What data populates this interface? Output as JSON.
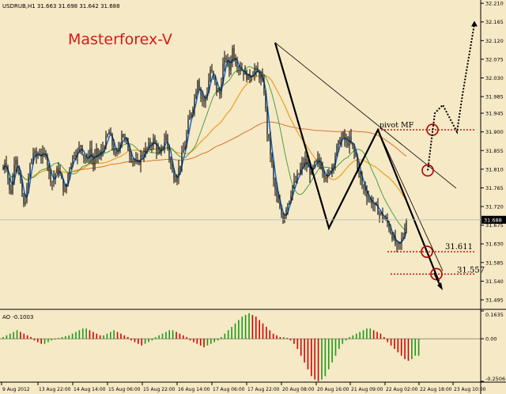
{
  "chart_data": [
    {
      "type": "candlestick",
      "symbol_header": "USDRUB,H1  31.663 31.698 31.642 31.688",
      "watermark": "Masterforex-V",
      "ylim": [
        31.474,
        32.195
      ],
      "y_ticks": [
        "32.210",
        "32.165",
        "32.120",
        "32.075",
        "32.030",
        "31.985",
        "31.945",
        "31.900",
        "31.855",
        "31.810",
        "31.765",
        "31.720",
        "31.675",
        "31.630",
        "31.585",
        "31.540",
        "31.495"
      ],
      "y_tick_values": [
        32.21,
        32.165,
        32.12,
        32.075,
        32.03,
        31.985,
        31.945,
        31.9,
        31.855,
        31.81,
        31.765,
        31.72,
        31.675,
        31.63,
        31.585,
        31.54,
        31.495
      ],
      "current_price": "31.688",
      "current_price_value": 31.688,
      "x_labels": [
        "9 Aug 2012",
        "13 Aug 22:00",
        "14 Aug 14:00",
        "15 Aug 06:00",
        "15 Aug 22:00",
        "16 Aug 14:00",
        "17 Aug 06:00",
        "17 Aug 22:00",
        "20 Aug 08:00",
        "20 Aug 16:00",
        "21 Aug 09:00",
        "22 Aug 02:00",
        "22 Aug 18:00",
        "23 Aug 10:00"
      ],
      "price_path_x": [
        0,
        3,
        6,
        9,
        12,
        15,
        18,
        22,
        26,
        30,
        34,
        38,
        42,
        46,
        50,
        54,
        58,
        62,
        66,
        70,
        74,
        78,
        82,
        86,
        90,
        94,
        98,
        102,
        106,
        110,
        114,
        118,
        122,
        126,
        130,
        134,
        138,
        142,
        146,
        150,
        154,
        158,
        162,
        166,
        170,
        174,
        178,
        182,
        186,
        190,
        194,
        198,
        202,
        206,
        210,
        214,
        218,
        222,
        226,
        230,
        234,
        238,
        242,
        246,
        250,
        254,
        258,
        262,
        266,
        270,
        274,
        278,
        282,
        286,
        290,
        294,
        298,
        302,
        306,
        310,
        314,
        318,
        322,
        326,
        330,
        334,
        338,
        342,
        346,
        350,
        354,
        358,
        362,
        366,
        370,
        374,
        378,
        382,
        386,
        390,
        394,
        398,
        402,
        406,
        410,
        414,
        418,
        422,
        426,
        430,
        434,
        438,
        442,
        446,
        450,
        454,
        458,
        462,
        466,
        470,
        474,
        478,
        482,
        486,
        490,
        494,
        498,
        502,
        506,
        510,
        514,
        518,
        522,
        526,
        530
      ],
      "price_path_y": [
        31.81,
        31.84,
        31.79,
        31.74,
        31.79,
        31.85,
        31.82,
        31.77,
        31.72,
        31.76,
        31.82,
        31.85,
        31.84,
        31.85,
        31.84,
        31.85,
        31.8,
        31.78,
        31.8,
        31.81,
        31.78,
        31.75,
        31.8,
        31.83,
        31.85,
        31.85,
        31.87,
        31.84,
        31.83,
        31.86,
        31.82,
        31.85,
        31.84,
        31.86,
        31.88,
        31.9,
        31.87,
        31.84,
        31.86,
        31.9,
        31.88,
        31.86,
        31.84,
        31.83,
        31.82,
        31.84,
        31.85,
        31.86,
        31.87,
        31.88,
        31.86,
        31.84,
        31.87,
        31.89,
        31.84,
        31.8,
        31.79,
        31.81,
        31.84,
        31.87,
        31.92,
        31.95,
        31.98,
        32.03,
        31.99,
        31.97,
        32.0,
        32.05,
        32.03,
        32.0,
        31.99,
        32.06,
        32.08,
        32.05,
        32.1,
        32.07,
        32.06,
        32.05,
        32.04,
        32.03,
        32.04,
        32.05,
        32.04,
        32.03,
        32.0,
        31.9,
        31.85,
        31.78,
        31.74,
        31.71,
        31.69,
        31.72,
        31.74,
        31.77,
        31.78,
        31.8,
        31.82,
        31.83,
        31.81,
        31.8,
        31.82,
        31.83,
        31.82,
        31.8,
        31.79,
        31.81,
        31.83,
        31.86,
        31.88,
        31.89,
        31.87,
        31.88,
        31.86,
        31.84,
        31.8,
        31.77,
        31.76,
        31.74,
        31.73,
        31.72,
        31.71,
        31.7,
        31.69,
        31.68,
        31.66,
        31.64,
        31.62,
        31.63,
        31.65,
        31.69
      ],
      "zigzag": [
        [
          32.115,
          0.735
        ],
        [
          31.668,
          0.9
        ],
        [
          31.905,
          0.6
        ],
        [
          31.54,
          0.2
        ]
      ],
      "annotations": [
        {
          "text": "pivot MF",
          "value": 31.905
        },
        {
          "text": "31.611",
          "value": 31.611
        },
        {
          "text": "31.557",
          "value": 31.557
        }
      ],
      "forecast_levels": [
        31.905,
        31.807,
        31.611,
        31.557
      ]
    },
    {
      "type": "bar",
      "title": "AO -0.1003",
      "y_ticks": [
        "0.1635",
        "0.00",
        "-0.2506"
      ],
      "ylim": [
        -0.2506,
        0.1635
      ],
      "values": [
        0.01,
        0.02,
        0.03,
        0.04,
        0.05,
        0.04,
        0.03,
        0.02,
        0.01,
        -0.01,
        -0.02,
        -0.03,
        -0.03,
        -0.02,
        -0.01,
        -0.005,
        0.005,
        0.01,
        0.015,
        0.02,
        0.03,
        0.04,
        0.05,
        0.06,
        0.06,
        0.05,
        0.04,
        0.03,
        0.02,
        0.02,
        0.03,
        0.04,
        0.05,
        0.04,
        0.03,
        0.02,
        0.01,
        -0.01,
        -0.02,
        -0.03,
        -0.04,
        -0.03,
        -0.02,
        -0.01,
        0.01,
        0.02,
        0.03,
        0.04,
        0.05,
        0.05,
        0.04,
        0.03,
        0.02,
        0.01,
        -0.01,
        -0.02,
        -0.03,
        -0.04,
        -0.05,
        -0.04,
        -0.03,
        -0.02,
        -0.01,
        0.01,
        0.03,
        0.05,
        0.07,
        0.09,
        0.11,
        0.13,
        0.14,
        0.15,
        0.14,
        0.13,
        0.11,
        0.09,
        0.07,
        0.05,
        0.03,
        0.02,
        0.01,
        0.01,
        0.005,
        -0.01,
        -0.03,
        -0.06,
        -0.1,
        -0.14,
        -0.18,
        -0.22,
        -0.24,
        -0.25,
        -0.24,
        -0.22,
        -0.18,
        -0.14,
        -0.1,
        -0.06,
        -0.03,
        -0.01,
        0.01,
        0.02,
        0.03,
        0.04,
        0.05,
        0.06,
        0.06,
        0.05,
        0.04,
        0.03,
        0.01,
        -0.02,
        -0.04,
        -0.06,
        -0.08,
        -0.1,
        -0.12,
        -0.13,
        -0.12,
        -0.1,
        -0.1
      ]
    }
  ]
}
